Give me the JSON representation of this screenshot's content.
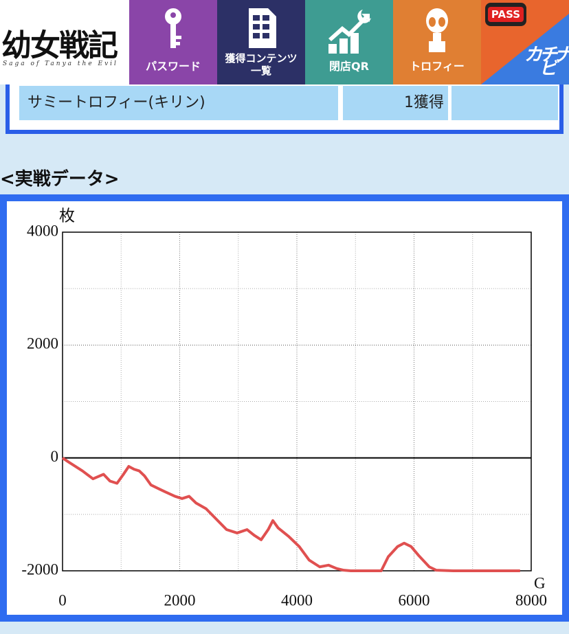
{
  "header": {
    "logo": {
      "title": "幼女戦記",
      "subtitle": "Saga of Tanya the Evil"
    },
    "nav": [
      {
        "label": "パスワード"
      },
      {
        "label": "獲得コンテンツ",
        "label2": "一覧"
      },
      {
        "label": "閉店QR"
      },
      {
        "label": "トロフィー"
      },
      {
        "label": "PASS",
        "label2": "カチナビ"
      }
    ]
  },
  "trophy_row": {
    "name": "サミートロフィー(キリン)",
    "count": "1獲得"
  },
  "section_title": "<実戦データ>",
  "chart_data": {
    "type": "line",
    "ylabel": "枚",
    "xlabel": "G",
    "color": "#e05050",
    "x": [
      0,
      100,
      340,
      520,
      700,
      810,
      930,
      1040,
      1130,
      1220,
      1310,
      1400,
      1510,
      1630,
      1750,
      1920,
      2040,
      2160,
      2280,
      2450,
      2630,
      2800,
      2980,
      3150,
      3270,
      3390,
      3510,
      3590,
      3680,
      3860,
      4040,
      4210,
      4390,
      4540,
      4680,
      4800,
      4920,
      5440,
      5560,
      5720,
      5830,
      5950,
      6080,
      6260,
      6380,
      6670,
      7810
    ],
    "values": [
      0,
      -70,
      -230,
      -370,
      -290,
      -410,
      -450,
      -290,
      -150,
      -200,
      -230,
      -320,
      -480,
      -540,
      -600,
      -680,
      -720,
      -680,
      -800,
      -900,
      -1090,
      -1270,
      -1330,
      -1270,
      -1370,
      -1450,
      -1270,
      -1110,
      -1240,
      -1390,
      -1570,
      -1810,
      -1930,
      -1900,
      -1960,
      -1990,
      -2000,
      -2000,
      -1750,
      -1570,
      -1510,
      -1570,
      -1730,
      -1930,
      -1990,
      -2000,
      -2000
    ],
    "xlim": [
      0,
      8000
    ],
    "xticks": [
      0,
      2000,
      4000,
      6000,
      8000
    ],
    "minor_xticks": [
      1000,
      3000,
      5000,
      7000
    ],
    "ylim": [
      -2000,
      4000
    ],
    "yticks": [
      -2000,
      0,
      2000,
      4000
    ],
    "minor_yticks": [
      -1000,
      1000,
      3000
    ],
    "grid": true
  }
}
